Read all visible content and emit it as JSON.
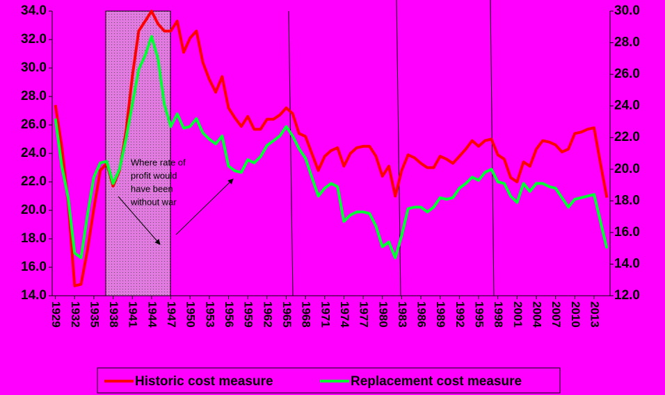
{
  "chart_data": {
    "type": "line",
    "categories": [
      "1929",
      null,
      null,
      "1932",
      null,
      null,
      "1935",
      null,
      null,
      "1938",
      null,
      null,
      "1941",
      null,
      null,
      "1944",
      null,
      null,
      "1947",
      null,
      null,
      "1950",
      null,
      null,
      "1953",
      null,
      null,
      "1956",
      null,
      null,
      "1959",
      null,
      null,
      "1962",
      null,
      null,
      "1965",
      null,
      null,
      "1968",
      null,
      null,
      "1971",
      null,
      null,
      "1974",
      null,
      null,
      "1977",
      null,
      null,
      "1980",
      null,
      null,
      "1983",
      null,
      null,
      "1986",
      null,
      null,
      "1989",
      null,
      null,
      "1992",
      null,
      null,
      "1995",
      null,
      null,
      "1998",
      null,
      null,
      "2001",
      null,
      null,
      "2004",
      null,
      null,
      "2007",
      null,
      null,
      "2010",
      null,
      null,
      "2013",
      null,
      null
    ],
    "series": [
      {
        "name": "Historic cost measure",
        "color": "#ff0000",
        "values": [
          27.4,
          24.5,
          20.6,
          14.7,
          14.8,
          17.2,
          20.1,
          22.8,
          23.3,
          21.7,
          22.8,
          25.5,
          29.4,
          32.6,
          33.3,
          34.0,
          33.1,
          32.6,
          32.6,
          33.3,
          31.1,
          32.1,
          32.6,
          30.4,
          29.2,
          28.3,
          29.4,
          27.2,
          26.5,
          25.9,
          26.6,
          25.7,
          25.7,
          26.4,
          26.4,
          26.7,
          27.2,
          26.8,
          25.4,
          25.2,
          24.0,
          22.8,
          23.8,
          24.2,
          24.4,
          23.1,
          24.0,
          24.4,
          24.5,
          24.5,
          23.8,
          22.4,
          23.1,
          21.0,
          22.8,
          23.9,
          23.7,
          23.3,
          23.0,
          23.0,
          23.8,
          23.6,
          23.3,
          23.8,
          24.3,
          24.9,
          24.5,
          24.9,
          25.0,
          23.9,
          23.6,
          22.3,
          22.0,
          23.4,
          23.1,
          24.3,
          24.9,
          24.8,
          24.6,
          24.1,
          24.3,
          25.4,
          25.5,
          25.7,
          25.8,
          23.3,
          20.9
        ]
      },
      {
        "name": "Replacement cost measure",
        "color": "#00ff33",
        "axis": "y2",
        "values": [
          23.2,
          20.2,
          18.2,
          14.7,
          14.4,
          17.1,
          19.5,
          20.4,
          20.5,
          19.1,
          20.0,
          21.9,
          24.1,
          26.3,
          27.2,
          28.4,
          27.0,
          24.1,
          22.7,
          23.5,
          22.6,
          22.7,
          23.2,
          22.3,
          21.9,
          21.6,
          22.1,
          20.2,
          19.9,
          19.8,
          20.6,
          20.4,
          20.8,
          21.5,
          21.8,
          22.1,
          22.7,
          22.1,
          21.3,
          20.7,
          19.5,
          18.3,
          18.8,
          19.1,
          18.9,
          16.7,
          17.1,
          17.3,
          17.3,
          17.2,
          16.4,
          15.1,
          15.4,
          14.4,
          15.8,
          17.5,
          17.6,
          17.6,
          17.3,
          17.6,
          18.2,
          18.1,
          18.2,
          18.8,
          19.1,
          19.5,
          19.3,
          19.8,
          20.0,
          19.2,
          19.1,
          18.3,
          17.9,
          19.1,
          18.6,
          19.1,
          19.1,
          18.9,
          18.8,
          18.2,
          17.6,
          18.1,
          18.2,
          18.3,
          18.4,
          16.7,
          15.0
        ]
      }
    ],
    "ylim": [
      14,
      34
    ],
    "yticks": [
      {
        "value": 14,
        "label": "14.0"
      },
      {
        "value": 16,
        "label": "16.0"
      },
      {
        "value": 18,
        "label": "18.0"
      },
      {
        "value": 20,
        "label": "20.0"
      },
      {
        "value": 22,
        "label": "22.0"
      },
      {
        "value": 24,
        "label": "24.0"
      },
      {
        "value": 26,
        "label": "26.0"
      },
      {
        "value": 28,
        "label": "28.0"
      },
      {
        "value": 30,
        "label": "30.0"
      },
      {
        "value": 32,
        "label": "32.0"
      },
      {
        "value": 34,
        "label": "34.0"
      }
    ],
    "y2lim": [
      12,
      30
    ],
    "y2ticks": [
      {
        "value": 12,
        "label": "12.0"
      },
      {
        "value": 14,
        "label": "14.0"
      },
      {
        "value": 16,
        "label": "16.0"
      },
      {
        "value": 18,
        "label": "18.0"
      },
      {
        "value": 20,
        "label": "20.0"
      },
      {
        "value": 22,
        "label": "22.0"
      },
      {
        "value": 24,
        "label": "24.0"
      },
      {
        "value": 26,
        "label": "26.0"
      },
      {
        "value": 28,
        "label": "28.0"
      },
      {
        "value": 30,
        "label": "30.0"
      }
    ],
    "annotation": [
      "Where rate of",
      "profit would",
      "have been",
      "without war"
    ],
    "grid": false,
    "legend": "bottom"
  }
}
